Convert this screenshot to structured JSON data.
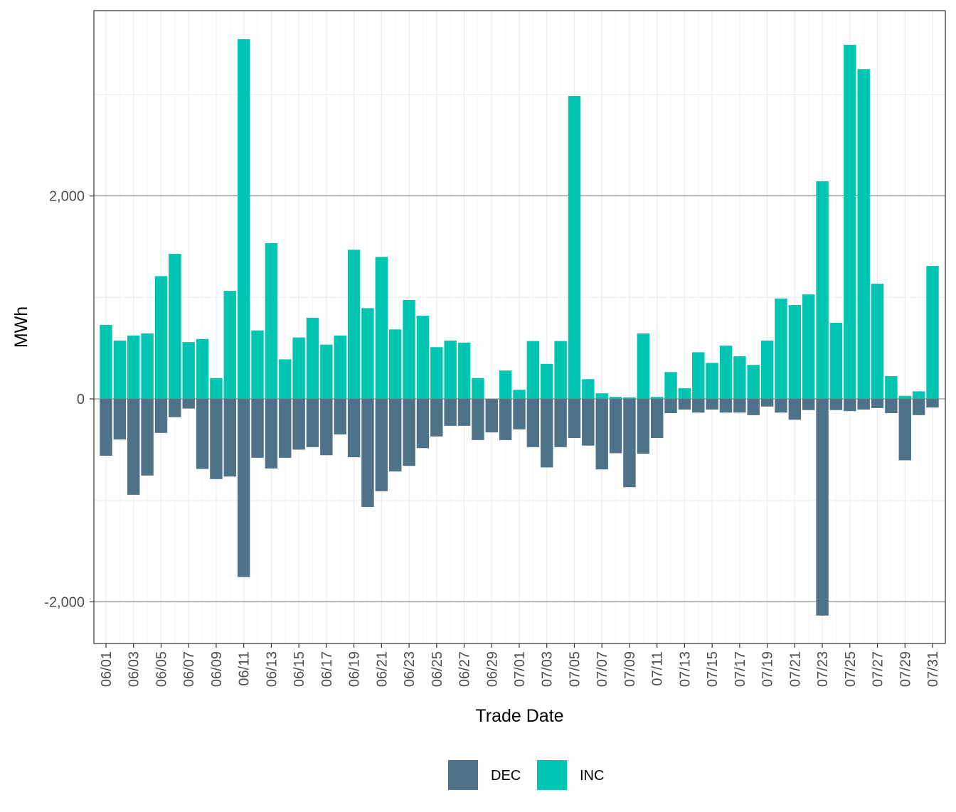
{
  "chart_data": {
    "type": "bar",
    "stacked": "diverging",
    "title": "",
    "xlabel": "Trade Date",
    "ylabel": "MWh",
    "ylim": [
      -2410,
      3826
    ],
    "y_ticks": [
      -2000,
      0,
      2000
    ],
    "y_tick_labels": [
      "-2,000",
      "0",
      "2,000"
    ],
    "y_minor_gridlines": [
      -1000,
      1000,
      3000
    ],
    "grid": true,
    "legend_position": "bottom",
    "categories": [
      "06/01",
      "06/02",
      "06/03",
      "06/04",
      "06/05",
      "06/06",
      "06/07",
      "06/08",
      "06/09",
      "06/10",
      "06/11",
      "06/12",
      "06/13",
      "06/14",
      "06/15",
      "06/16",
      "06/17",
      "06/18",
      "06/19",
      "06/20",
      "06/21",
      "06/22",
      "06/23",
      "06/24",
      "06/25",
      "06/26",
      "06/27",
      "06/28",
      "06/29",
      "06/30",
      "07/01",
      "07/02",
      "07/03",
      "07/04",
      "07/05",
      "07/06",
      "07/07",
      "07/08",
      "07/09",
      "07/10",
      "07/11",
      "07/12",
      "07/13",
      "07/14",
      "07/15",
      "07/16",
      "07/17",
      "07/18",
      "07/19",
      "07/20",
      "07/21",
      "07/22",
      "07/23",
      "07/24",
      "07/25",
      "07/26",
      "07/27",
      "07/28",
      "07/29",
      "07/30",
      "07/31"
    ],
    "x_tick_labels": [
      "06/01",
      "06/03",
      "06/05",
      "06/07",
      "06/09",
      "06/11",
      "06/13",
      "06/15",
      "06/17",
      "06/19",
      "06/21",
      "06/23",
      "06/25",
      "06/27",
      "06/29",
      "07/01",
      "07/03",
      "07/05",
      "07/07",
      "07/09",
      "07/11",
      "07/13",
      "07/15",
      "07/17",
      "07/19",
      "07/21",
      "07/23",
      "07/25",
      "07/27",
      "07/29",
      "07/31"
    ],
    "series": [
      {
        "name": "DEC",
        "color": "#4e7388",
        "values": [
          -560,
          -400,
          -945,
          -755,
          -335,
          -180,
          -95,
          -690,
          -790,
          -765,
          -1755,
          -580,
          -685,
          -580,
          -500,
          -475,
          -555,
          -350,
          -575,
          -1065,
          -910,
          -715,
          -660,
          -485,
          -370,
          -265,
          -265,
          -405,
          -330,
          -405,
          -300,
          -475,
          -675,
          -475,
          -385,
          -460,
          -695,
          -535,
          -870,
          -540,
          -385,
          -140,
          -105,
          -135,
          -105,
          -135,
          -135,
          -160,
          -75,
          -135,
          -205,
          -110,
          -2135,
          -110,
          -120,
          -105,
          -90,
          -140,
          -605,
          -160,
          -85
        ]
      },
      {
        "name": "INC",
        "color": "#00c5b2",
        "values": [
          730,
          575,
          625,
          645,
          1210,
          1430,
          560,
          590,
          205,
          1065,
          3545,
          675,
          1535,
          390,
          605,
          800,
          535,
          625,
          1470,
          895,
          1400,
          685,
          975,
          820,
          510,
          575,
          555,
          205,
          0,
          280,
          90,
          570,
          345,
          570,
          2985,
          195,
          55,
          20,
          15,
          645,
          20,
          265,
          105,
          460,
          355,
          525,
          420,
          335,
          575,
          990,
          925,
          1030,
          2145,
          750,
          3490,
          3250,
          1135,
          225,
          30,
          75,
          1310
        ]
      }
    ]
  }
}
